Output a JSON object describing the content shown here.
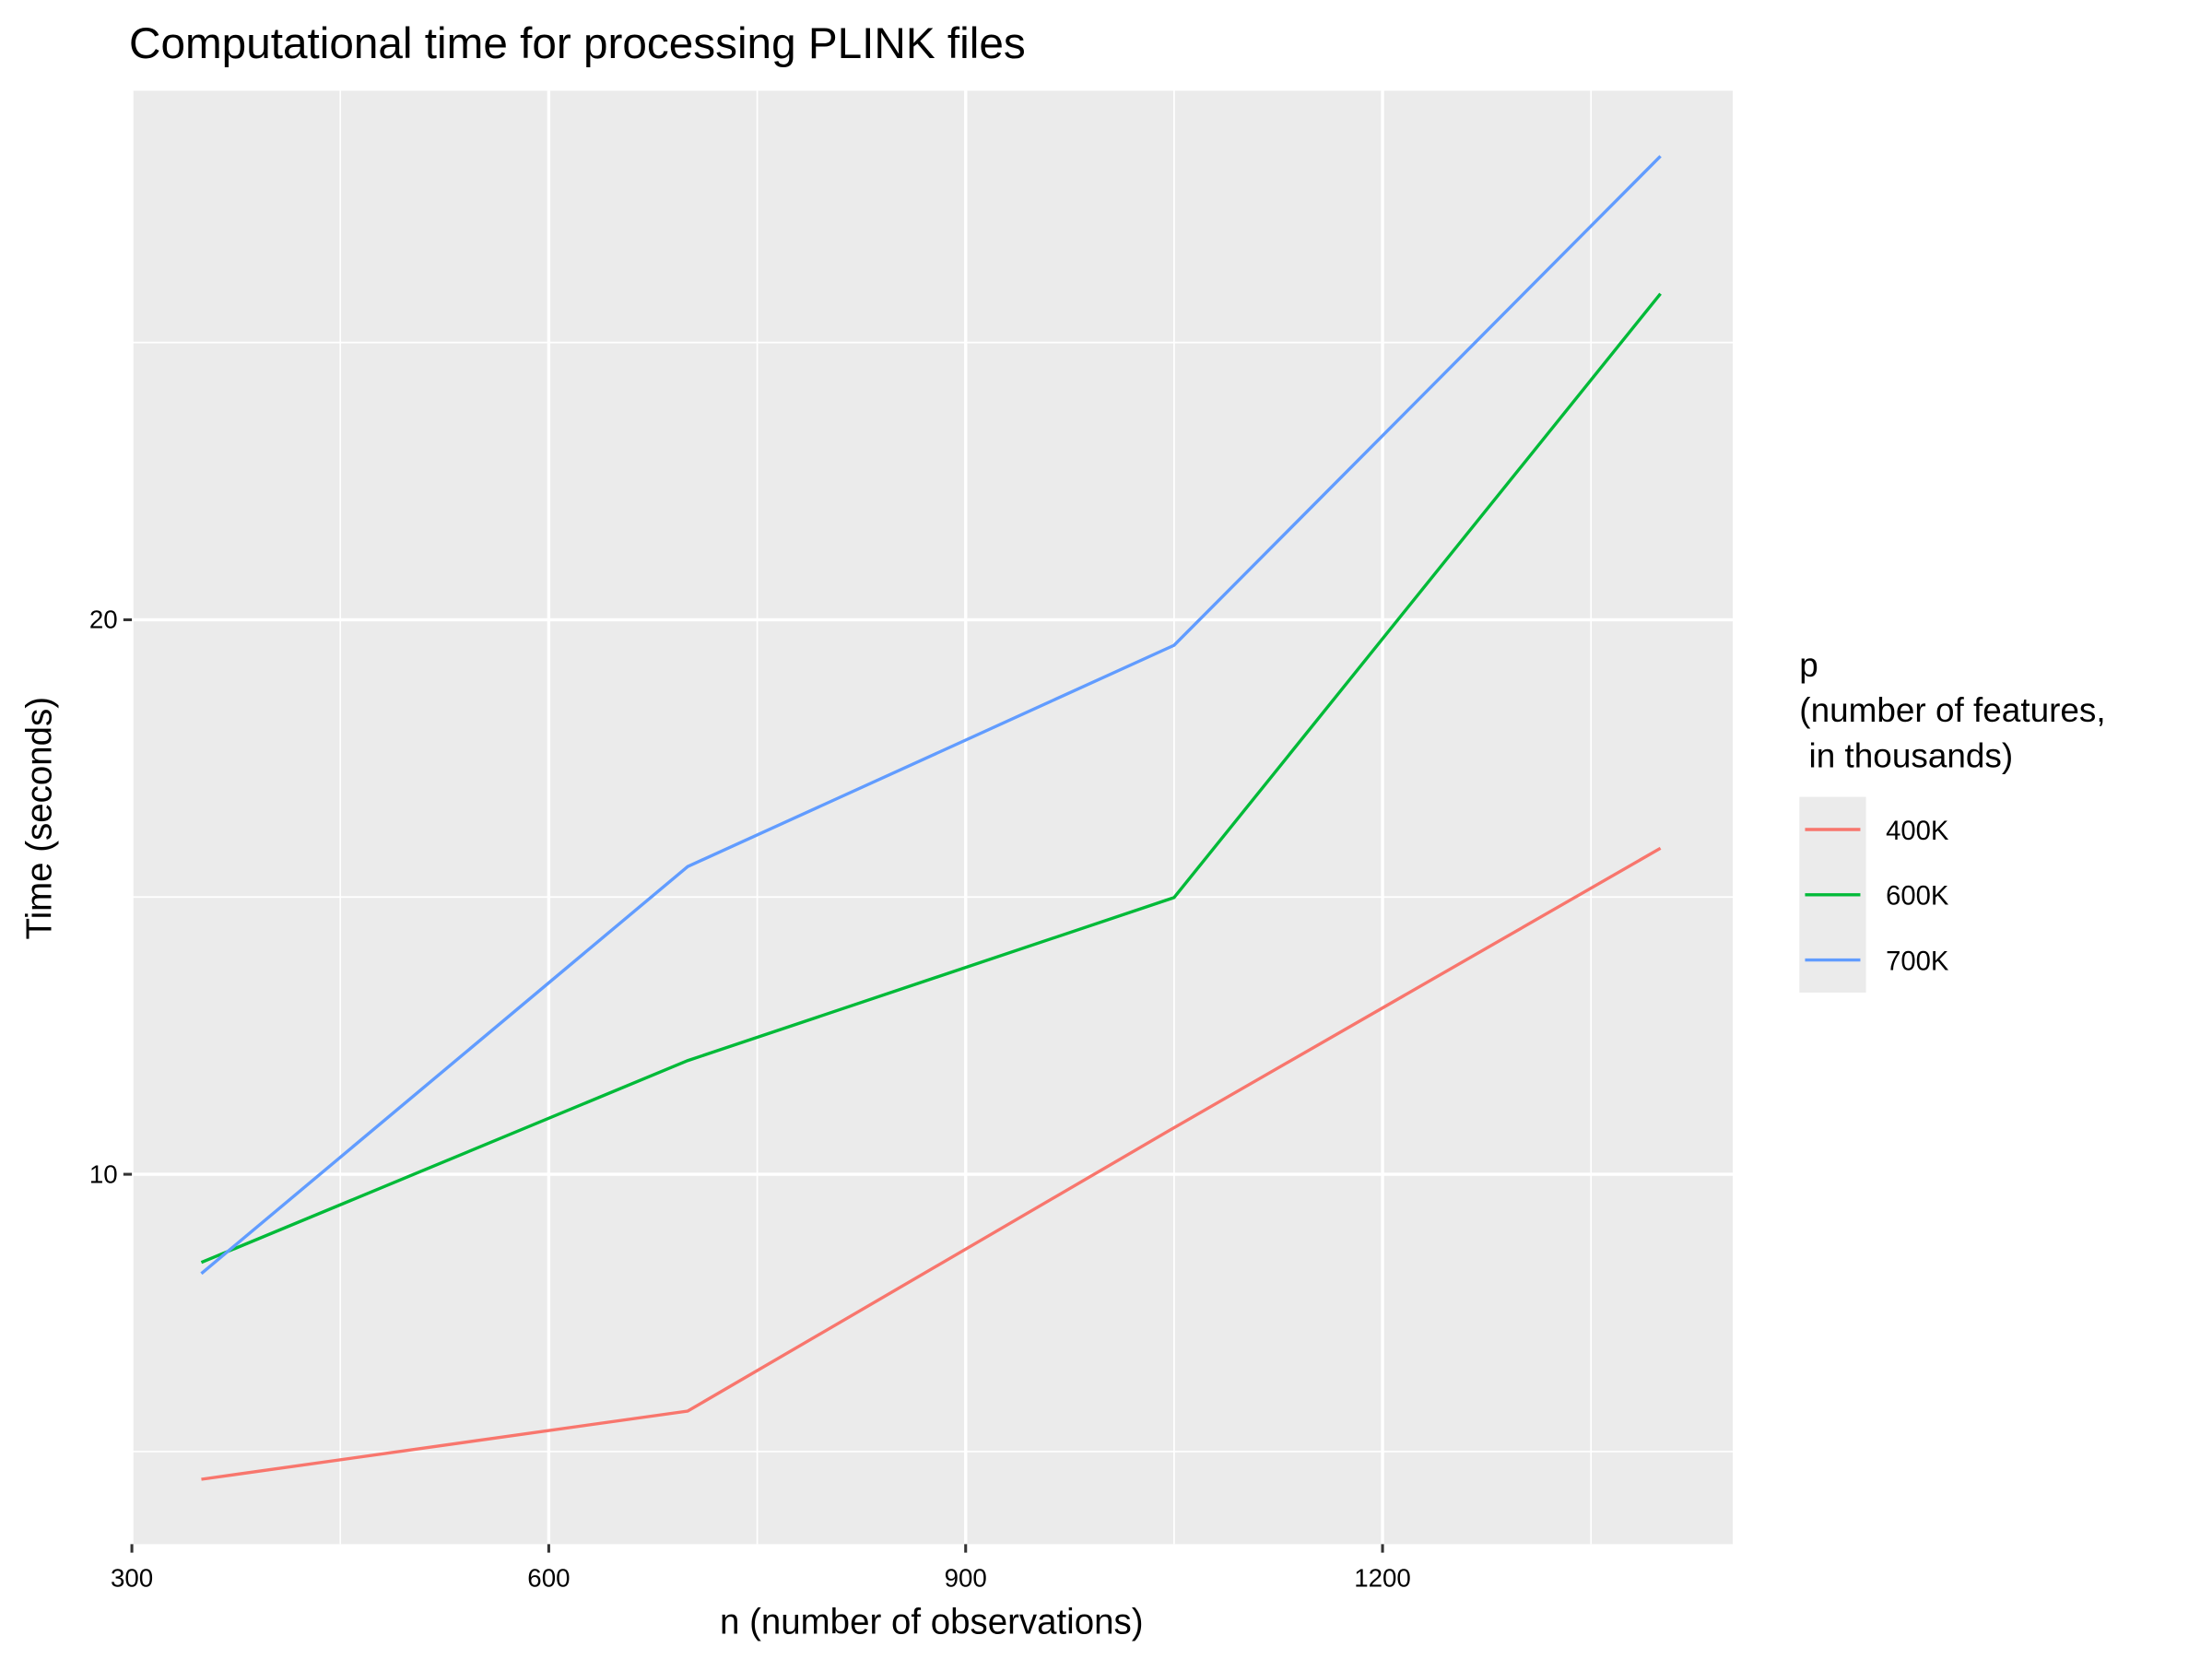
{
  "chart_data": {
    "type": "line",
    "title": "Computational time for processing PLINK files",
    "x_label": "n (number of observations)",
    "y_label": "Time (seconds)",
    "legend_title": [
      "p",
      "(number of features,",
      " in thousands)"
    ],
    "x": [
      350,
      700,
      1050,
      1400
    ],
    "series": [
      {
        "name": "400K",
        "color": "#F8766D",
        "values": [
          4.5,
          5.73,
          10.84,
          15.88
        ]
      },
      {
        "name": "600K",
        "color": "#00BA38",
        "values": [
          8.41,
          12.05,
          14.99,
          25.88
        ]
      },
      {
        "name": "700K",
        "color": "#619CFF",
        "values": [
          8.21,
          15.55,
          19.54,
          28.36
        ]
      }
    ],
    "xlim": [
      300,
      1452
    ],
    "ylim": [
      3.33,
      29.54
    ],
    "xticks": [
      300,
      600,
      900,
      1200
    ],
    "yticks": [
      10,
      20
    ],
    "x_minor_grid": [
      450,
      750,
      1050,
      1350
    ],
    "y_minor_grid": [
      5,
      15,
      25
    ],
    "grid": true,
    "legend_position": "right"
  }
}
